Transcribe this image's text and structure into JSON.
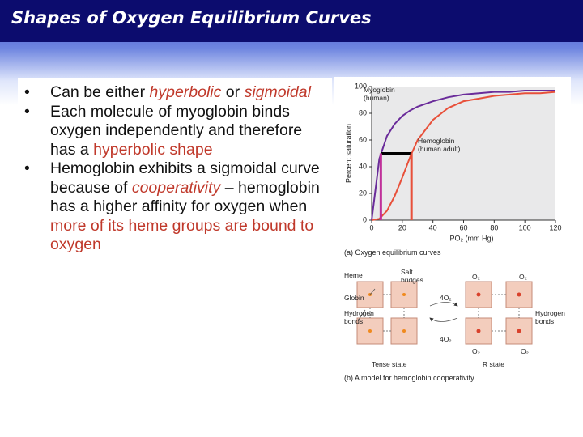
{
  "header": {
    "title": "Shapes of Oxygen Equilibrium Curves"
  },
  "bullets": [
    [
      "Can be either ",
      "hyperbolic",
      " or ",
      "sigmoidal"
    ],
    [
      "Each molecule of myoglobin binds oxygen independently and therefore has a ",
      "hyperbolic shape"
    ],
    [
      "Hemoglobin exhibits a sigmoidal curve because of ",
      "cooperativity",
      " – hemoglobin has a higher affinity for oxygen when ",
      "more of its heme groups are bound to oxygen"
    ]
  ],
  "chart_data": {
    "type": "line",
    "caption": "(a) Oxygen equilibrium curves",
    "x_label": "PO₂ (mm Hg)",
    "y_label": "Percent saturation",
    "x": [
      0,
      5,
      10,
      15,
      20,
      25,
      30,
      40,
      50,
      60,
      70,
      80,
      90,
      100,
      110,
      120
    ],
    "series": [
      {
        "name": "Myoglobin (human)",
        "color": "#6a2c9a",
        "values": [
          0,
          46,
          63,
          72,
          78,
          82,
          85,
          89,
          92,
          94,
          95,
          96,
          96,
          97,
          97,
          97
        ]
      },
      {
        "name": "Hemoglobin (human adult)",
        "color": "#e8503a",
        "values": [
          0,
          1,
          7,
          18,
          32,
          47,
          60,
          75,
          84,
          89,
          91,
          93,
          94,
          95,
          95,
          96
        ]
      }
    ],
    "half_saturation": {
      "y": 50,
      "x": [
        6,
        26
      ]
    },
    "xlim": [
      0,
      120
    ],
    "ylim": [
      0,
      100
    ],
    "xticks": [
      0,
      20,
      40,
      60,
      80,
      100,
      120
    ],
    "yticks": [
      0,
      20,
      40,
      60,
      80,
      100
    ]
  },
  "panel_b": {
    "caption": "(b) A model for hemoglobin cooperativity",
    "labels": {
      "heme": "Heme",
      "globin": "Globin",
      "hbonds_left": "Hydrogen bonds",
      "salt": "Salt bridges",
      "forward": "4O₂",
      "reverse": "4O₂",
      "o2_tl": "O₂",
      "o2_tr": "O₂",
      "o2_bl": "O₂",
      "o2_br": "O₂",
      "hbonds_right": "Hydrogen bonds",
      "tense": "Tense state",
      "relaxed": "R state"
    }
  }
}
